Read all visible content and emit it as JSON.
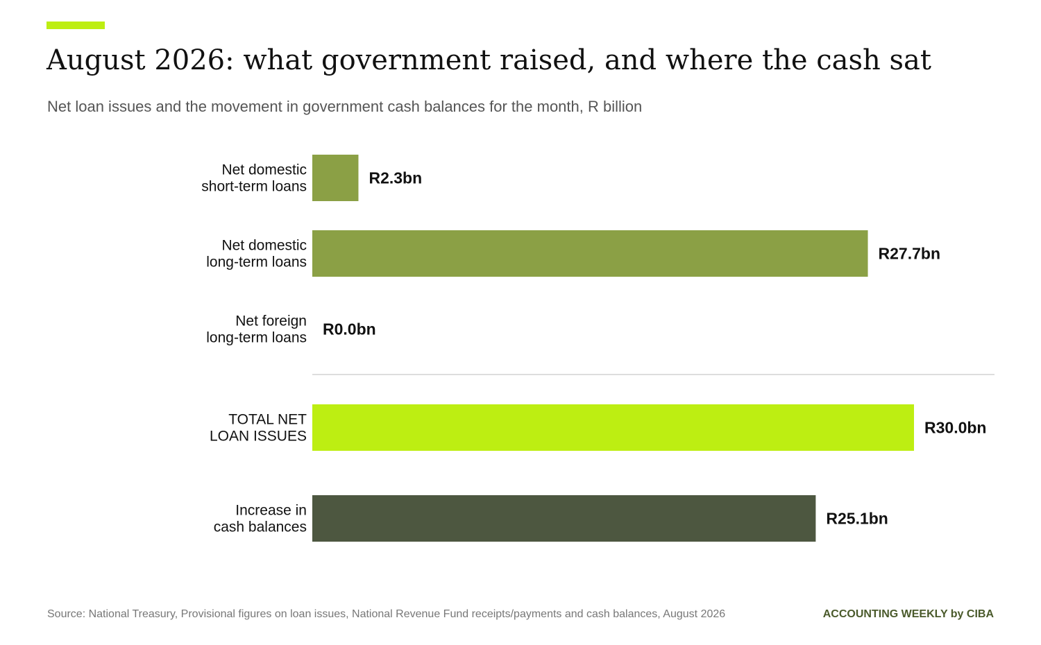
{
  "header": {
    "title": "August 2026: what government raised, and where the cash sat",
    "subtitle": "Net loan issues and the movement in government cash balances for the month, R billion"
  },
  "footer": {
    "source": "Source: National Treasury, Provisional figures on loan issues, National Revenue Fund receipts/payments and cash balances, August 2026",
    "brand": "ACCOUNTING WEEKLY by CIBA"
  },
  "colors": {
    "accent": "#BDEE12",
    "loans": "#8BA045",
    "total": "#BDEE12",
    "cash": "#4D5740",
    "divider": "#DDDDDD"
  },
  "chart_data": {
    "type": "bar",
    "orientation": "horizontal",
    "title": "August 2026: what government raised, and where the cash sat",
    "subtitle": "Net loan issues and the movement in government cash balances for the month, R billion",
    "unit": "R billion",
    "xlim": [
      0,
      30.0
    ],
    "grid": false,
    "legend": "none",
    "categories": [
      [
        "Net domestic",
        "short-term loans"
      ],
      [
        "Net domestic",
        "long-term loans"
      ],
      [
        "Net foreign",
        "long-term loans"
      ],
      [
        "TOTAL NET",
        "LOAN ISSUES"
      ],
      [
        "Increase in",
        "cash balances"
      ]
    ],
    "values": [
      2.3,
      27.7,
      0.0,
      30.0,
      25.1
    ],
    "value_labels": [
      "R2.3bn",
      "R27.7bn",
      "R0.0bn",
      "R30.0bn",
      "R25.1bn"
    ],
    "bar_colors": [
      "#8BA045",
      "#8BA045",
      "#8BA045",
      "#BDEE12",
      "#4D5740"
    ],
    "divider_after_index": 2
  }
}
